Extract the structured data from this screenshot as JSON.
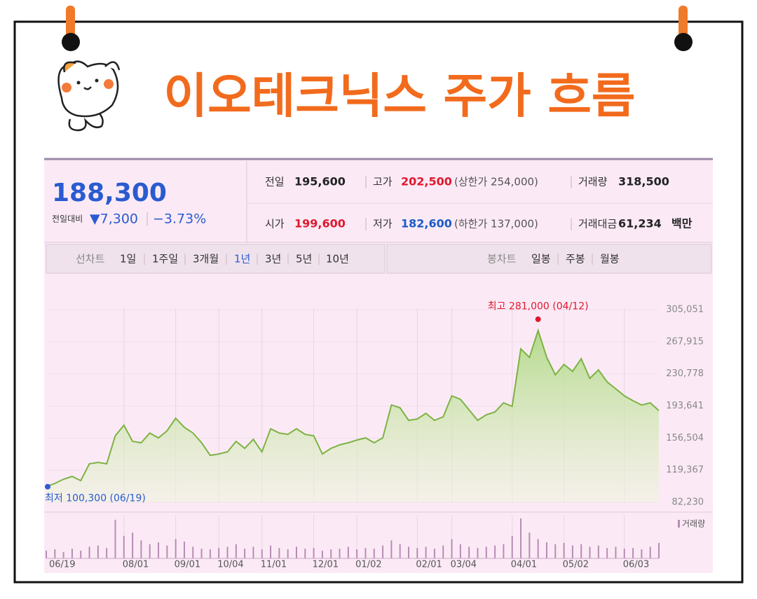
{
  "header": {
    "title": "이오테크닉스 주가 흐름"
  },
  "quote": {
    "price": "188,300",
    "change_label": "전일대비",
    "change": "▼7,300",
    "change_pct": "−3.73%",
    "items": [
      {
        "label": "전일",
        "value": "195,600"
      },
      {
        "label": "고가",
        "value": "202,500",
        "note": "(상한가 254,000)"
      },
      {
        "label": "거래량",
        "value": "318,500"
      },
      {
        "label": "시가",
        "value": "199,600"
      },
      {
        "label": "저가",
        "value": "182,600",
        "note": "(하한가 137,000)"
      },
      {
        "label": "거래대금",
        "value": "61,234",
        "unit": "백만"
      }
    ]
  },
  "tabs": {
    "line_chart": "선차트",
    "periods": [
      "1일",
      "1주일",
      "3개월",
      "1년",
      "3년",
      "5년",
      "10년"
    ],
    "candle_chart": "봉차트",
    "candles": [
      "일봉",
      "주봉",
      "월봉"
    ]
  },
  "chart_data": {
    "type": "area",
    "color": "#7cb342",
    "categories": [
      "06/19",
      null,
      null,
      null,
      null,
      null,
      null,
      null,
      null,
      "08/01",
      null,
      null,
      null,
      null,
      null,
      "09/01",
      null,
      null,
      null,
      null,
      "10/04",
      null,
      null,
      null,
      null,
      "11/01",
      null,
      null,
      null,
      null,
      null,
      "12/01",
      null,
      null,
      null,
      null,
      "01/02",
      null,
      null,
      null,
      null,
      null,
      null,
      "02/01",
      null,
      null,
      null,
      "03/04",
      null,
      null,
      null,
      null,
      null,
      null,
      "04/01",
      null,
      null,
      null,
      null,
      null,
      "05/02",
      null,
      null,
      null,
      null,
      null,
      null,
      "06/03",
      null,
      null,
      null,
      null
    ],
    "values": [
      100300,
      104100,
      109000,
      112200,
      107300,
      126800,
      128400,
      126800,
      159200,
      171400,
      152700,
      151100,
      162400,
      156800,
      164900,
      179500,
      168900,
      162400,
      151100,
      136500,
      138100,
      140600,
      152700,
      144600,
      155100,
      140600,
      167300,
      162400,
      160800,
      167300,
      160800,
      159200,
      138100,
      144600,
      148700,
      151100,
      154300,
      156800,
      151100,
      156800,
      194800,
      191600,
      177000,
      178600,
      185100,
      177000,
      181100,
      205400,
      201300,
      189200,
      177000,
      183500,
      186700,
      197300,
      193200,
      259700,
      249900,
      281000,
      249900,
      229700,
      241800,
      233700,
      248300,
      225600,
      235400,
      221600,
      213500,
      205400,
      199700,
      194800,
      197300,
      188300
    ],
    "ylim": [
      82230,
      305051
    ],
    "yticks": [
      {
        "value": 82230,
        "label": "82,230"
      },
      {
        "value": 119367,
        "label": "119,367"
      },
      {
        "value": 156504,
        "label": "156,504"
      },
      {
        "value": 193641,
        "label": "193,641"
      },
      {
        "value": 230778,
        "label": "230,778"
      },
      {
        "value": 267915,
        "label": "267,915"
      },
      {
        "value": 305051,
        "label": "305,051"
      }
    ],
    "grid": true,
    "max_label": "최고 281,000 (04/12)",
    "min_label": "최저 100,300 (06/19)",
    "volume": {
      "name": "거래량",
      "color": "#b88cb4",
      "values": [
        12,
        14,
        10,
        15,
        12,
        18,
        20,
        16,
        60,
        35,
        40,
        28,
        22,
        25,
        20,
        30,
        26,
        18,
        15,
        14,
        16,
        18,
        22,
        15,
        18,
        14,
        20,
        16,
        14,
        18,
        15,
        16,
        12,
        14,
        15,
        18,
        14,
        16,
        15,
        20,
        28,
        22,
        18,
        16,
        18,
        15,
        20,
        30,
        22,
        18,
        16,
        18,
        20,
        22,
        35,
        62,
        40,
        30,
        25,
        22,
        24,
        20,
        22,
        18,
        20,
        16,
        18,
        15,
        16,
        14,
        18,
        24
      ]
    }
  }
}
